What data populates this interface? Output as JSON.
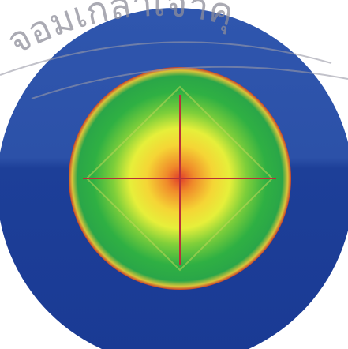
{
  "watermark": {
    "text": "จอมเกล้าเจ้าคุ"
  }
}
